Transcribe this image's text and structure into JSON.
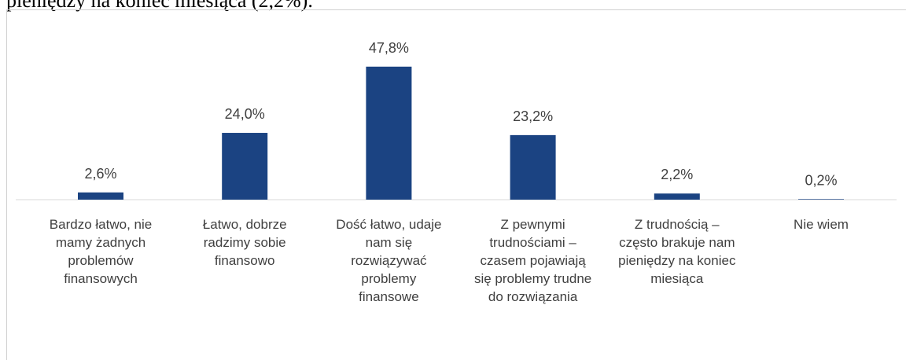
{
  "document": {
    "lead_text": "pieniędzy na koniec miesiąca (2,2%)."
  },
  "chart_data": {
    "type": "bar",
    "categories": [
      "Bardzo łatwo, nie mamy żadnych problemów finansowych",
      "Łatwo, dobrze radzimy sobie finansowo",
      "Dość łatwo, udaje nam się rozwiązywać problemy finansowe",
      "Z pewnymi trudnościami – czasem pojawiają się problemy trudne do rozwiązania",
      "Z trudnością – często brakuje nam pieniędzy na koniec miesiąca",
      "Nie wiem"
    ],
    "values": [
      2.6,
      24.0,
      47.8,
      23.2,
      2.2,
      0.2
    ],
    "value_labels": [
      "2,6%",
      "24,0%",
      "47,8%",
      "23,2%",
      "2,2%",
      "0,2%"
    ],
    "color": "#1b4382"
  }
}
